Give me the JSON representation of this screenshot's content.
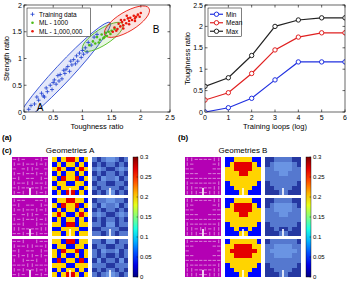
{
  "panel_labels": [
    "(a)",
    "(b)",
    "(c)"
  ],
  "chart_data": [
    {
      "type": "scatter",
      "x_label": "Toughness ratio",
      "y_label": "Strength ratio",
      "xlim": [
        0,
        2.5
      ],
      "ylim": [
        0,
        2
      ],
      "xticks": [
        0,
        0.5,
        1,
        1.5,
        2,
        2.5
      ],
      "yticks": [
        0,
        0.5,
        1,
        1.5,
        2
      ],
      "grid": false,
      "legend": "upper left",
      "annotations": [
        "A",
        "B"
      ],
      "series": [
        {
          "name": "Training data",
          "color": "#2040d0",
          "marker": "plus",
          "x": [
            0.08,
            0.12,
            0.18,
            0.22,
            0.25,
            0.3,
            0.33,
            0.38,
            0.4,
            0.45,
            0.48,
            0.52,
            0.55,
            0.58,
            0.6,
            0.62,
            0.65,
            0.68,
            0.7,
            0.72,
            0.75,
            0.78,
            0.8,
            0.82,
            0.85,
            0.88,
            0.9,
            0.92,
            0.95,
            0.98,
            1.0,
            1.02,
            1.05,
            1.08,
            1.1,
            1.15,
            1.2,
            1.25,
            0.35,
            0.5
          ],
          "values": [
            0.05,
            0.12,
            0.15,
            0.28,
            0.22,
            0.35,
            0.3,
            0.45,
            0.38,
            0.5,
            0.42,
            0.6,
            0.52,
            0.68,
            0.58,
            0.7,
            0.62,
            0.78,
            0.72,
            0.8,
            0.85,
            0.76,
            0.95,
            0.88,
            0.98,
            0.9,
            1.05,
            0.95,
            1.1,
            1.02,
            1.15,
            1.08,
            1.2,
            1.12,
            1.3,
            1.25,
            1.4,
            1.45,
            0.28,
            0.55
          ]
        },
        {
          "name": "ML - 1000",
          "color": "#4cbb17",
          "marker": "dot",
          "x": [
            1.12,
            1.18,
            1.22,
            1.25,
            1.3,
            1.33,
            1.36,
            1.4,
            1.42,
            1.45,
            1.5,
            1.55,
            1.28,
            1.38,
            1.48
          ],
          "values": [
            1.25,
            1.32,
            1.28,
            1.4,
            1.35,
            1.45,
            1.38,
            1.48,
            1.42,
            1.5,
            1.52,
            1.55,
            1.3,
            1.4,
            1.46
          ]
        },
        {
          "name": "ML - 1,000,000",
          "color": "#e8180c",
          "marker": "dot",
          "x": [
            1.52,
            1.55,
            1.6,
            1.62,
            1.65,
            1.68,
            1.7,
            1.72,
            1.75,
            1.78,
            1.8,
            1.82,
            1.85,
            1.88,
            1.9,
            1.92,
            1.95,
            1.98,
            2.0,
            1.58,
            1.7,
            1.8,
            1.9,
            1.66,
            1.76
          ],
          "values": [
            1.5,
            1.58,
            1.55,
            1.65,
            1.6,
            1.68,
            1.62,
            1.72,
            1.66,
            1.75,
            1.7,
            1.76,
            1.72,
            1.8,
            1.75,
            1.78,
            1.82,
            1.78,
            1.85,
            1.52,
            1.56,
            1.64,
            1.7,
            1.72,
            1.8
          ]
        }
      ]
    },
    {
      "type": "line",
      "x_label": "Training loops (log)",
      "y_label": "Toughness ratio",
      "x": [
        0,
        1,
        2,
        3,
        4,
        5,
        6
      ],
      "xlim": [
        0,
        6
      ],
      "ylim": [
        0,
        2.5
      ],
      "xticks": [
        0,
        1,
        2,
        3,
        4,
        5,
        6
      ],
      "yticks": [
        0,
        0.5,
        1,
        1.5,
        2,
        2.5
      ],
      "grid": false,
      "legend": "upper left",
      "series": [
        {
          "name": "Min",
          "color": "#2030e0",
          "marker": "circle",
          "values": [
            0,
            0.1,
            0.32,
            0.75,
            1.17,
            1.17,
            1.17
          ]
        },
        {
          "name": "Mean",
          "color": "#e02020",
          "marker": "circle",
          "values": [
            0.28,
            0.45,
            0.9,
            1.45,
            1.75,
            1.85,
            1.85
          ]
        },
        {
          "name": "Max",
          "color": "#222222",
          "marker": "circle",
          "values": [
            0.6,
            0.8,
            1.32,
            2.0,
            2.15,
            2.2,
            2.2
          ]
        }
      ]
    }
  ],
  "geometry_panels": [
    {
      "title": "Geometries A",
      "colorbar": {
        "range": [
          0,
          0.3
        ],
        "ticks": [
          0,
          0.05,
          0.1,
          0.15,
          0.2,
          0.25,
          0.3
        ]
      },
      "geometries": [
        [
          [
            0.2,
            0.04,
            0.2,
            0.27,
            0.27,
            0.2,
            0.04,
            0.2
          ],
          [
            0.04,
            0.2,
            0.04,
            0.2,
            0.2,
            0.04,
            0.2,
            0.04
          ],
          [
            0.2,
            0.27,
            0.2,
            0.04,
            0.04,
            0.2,
            0.27,
            0.2
          ],
          [
            0.04,
            0.2,
            0.04,
            0.2,
            0.2,
            0.04,
            0.2,
            0.04
          ],
          [
            0.2,
            0.04,
            0.27,
            0.2,
            0.2,
            0.27,
            0.04,
            0.2
          ],
          [
            0.04,
            0.2,
            0.2,
            0.04,
            0.04,
            0.2,
            0.2,
            0.04
          ],
          [
            0.2,
            0.04,
            0.2,
            0.2,
            0.2,
            0.2,
            0.04,
            0.2
          ],
          [
            0.04,
            0.2,
            0.04,
            0.27,
            0.27,
            0.04,
            0.2,
            0.04
          ]
        ],
        [
          [
            0.04,
            0.2,
            0.2,
            0.27,
            0.27,
            0.2,
            0.2,
            0.04
          ],
          [
            0.2,
            0.04,
            0.27,
            0.2,
            0.2,
            0.27,
            0.04,
            0.2
          ],
          [
            0.04,
            0.2,
            0.04,
            0.2,
            0.2,
            0.04,
            0.2,
            0.04
          ],
          [
            0.2,
            0.27,
            0.2,
            0.04,
            0.04,
            0.2,
            0.27,
            0.2
          ],
          [
            0.04,
            0.2,
            0.04,
            0.2,
            0.2,
            0.04,
            0.2,
            0.04
          ],
          [
            0.2,
            0.2,
            0.04,
            0.27,
            0.27,
            0.04,
            0.2,
            0.2
          ],
          [
            0.04,
            0.04,
            0.2,
            0.2,
            0.2,
            0.2,
            0.04,
            0.04
          ],
          [
            0.2,
            0.2,
            0.04,
            0.2,
            0.2,
            0.04,
            0.2,
            0.2
          ]
        ],
        [
          [
            0.2,
            0.2,
            0.04,
            0.27,
            0.27,
            0.04,
            0.2,
            0.2
          ],
          [
            0.04,
            0.2,
            0.2,
            0.04,
            0.04,
            0.2,
            0.2,
            0.04
          ],
          [
            0.2,
            0.04,
            0.27,
            0.2,
            0.2,
            0.27,
            0.04,
            0.2
          ],
          [
            0.2,
            0.04,
            0.2,
            0.04,
            0.04,
            0.2,
            0.04,
            0.2
          ],
          [
            0.04,
            0.27,
            0.04,
            0.2,
            0.2,
            0.04,
            0.27,
            0.04
          ],
          [
            0.2,
            0.2,
            0.2,
            0.04,
            0.04,
            0.2,
            0.2,
            0.2
          ],
          [
            0.04,
            0.2,
            0.04,
            0.2,
            0.2,
            0.04,
            0.2,
            0.04
          ],
          [
            0.2,
            0.04,
            0.2,
            0.27,
            0.27,
            0.2,
            0.04,
            0.2
          ]
        ]
      ]
    },
    {
      "title": "Geometries B",
      "colorbar": {
        "range": [
          0,
          0.3
        ],
        "ticks": [
          0,
          0.05,
          0.1,
          0.15,
          0.2,
          0.25,
          0.3
        ]
      },
      "geometries": [
        [
          [
            0.04,
            0.04,
            0.2,
            0.2,
            0.2,
            0.2,
            0.04,
            0.04
          ],
          [
            0.04,
            0.2,
            0.27,
            0.27,
            0.27,
            0.27,
            0.2,
            0.04
          ],
          [
            0.2,
            0.2,
            0.27,
            0.27,
            0.27,
            0.27,
            0.2,
            0.2
          ],
          [
            0.2,
            0.2,
            0.2,
            0.27,
            0.27,
            0.2,
            0.2,
            0.2
          ],
          [
            0.2,
            0.2,
            0.2,
            0.2,
            0.2,
            0.2,
            0.2,
            0.2
          ],
          [
            0.04,
            0.2,
            0.2,
            0.2,
            0.2,
            0.2,
            0.2,
            0.04
          ],
          [
            0.04,
            0.04,
            0.2,
            0.2,
            0.2,
            0.2,
            0.04,
            0.04
          ],
          [
            0.04,
            0.04,
            0.04,
            0.2,
            0.2,
            0.04,
            0.04,
            0.04
          ]
        ],
        [
          [
            0.04,
            0.04,
            0.2,
            0.2,
            0.2,
            0.2,
            0.04,
            0.04
          ],
          [
            0.04,
            0.2,
            0.27,
            0.27,
            0.27,
            0.27,
            0.2,
            0.04
          ],
          [
            0.2,
            0.2,
            0.27,
            0.27,
            0.27,
            0.27,
            0.2,
            0.2
          ],
          [
            0.2,
            0.2,
            0.2,
            0.27,
            0.27,
            0.2,
            0.2,
            0.2
          ],
          [
            0.2,
            0.2,
            0.2,
            0.2,
            0.2,
            0.2,
            0.2,
            0.2
          ],
          [
            0.04,
            0.2,
            0.2,
            0.2,
            0.2,
            0.2,
            0.2,
            0.04
          ],
          [
            0.04,
            0.04,
            0.2,
            0.04,
            0.04,
            0.2,
            0.04,
            0.04
          ],
          [
            0.04,
            0.04,
            0.04,
            0.2,
            0.2,
            0.04,
            0.04,
            0.04
          ]
        ],
        [
          [
            0.04,
            0.2,
            0.2,
            0.2,
            0.2,
            0.2,
            0.2,
            0.04
          ],
          [
            0.2,
            0.2,
            0.27,
            0.27,
            0.27,
            0.27,
            0.2,
            0.2
          ],
          [
            0.2,
            0.27,
            0.27,
            0.27,
            0.27,
            0.27,
            0.27,
            0.2
          ],
          [
            0.2,
            0.2,
            0.27,
            0.27,
            0.27,
            0.27,
            0.2,
            0.2
          ],
          [
            0.2,
            0.2,
            0.2,
            0.2,
            0.2,
            0.2,
            0.2,
            0.2
          ],
          [
            0.04,
            0.2,
            0.2,
            0.2,
            0.2,
            0.2,
            0.2,
            0.04
          ],
          [
            0.04,
            0.04,
            0.2,
            0.2,
            0.2,
            0.2,
            0.04,
            0.04
          ],
          [
            0.04,
            0.04,
            0.04,
            0.2,
            0.2,
            0.04,
            0.04,
            0.04
          ]
        ]
      ]
    }
  ]
}
